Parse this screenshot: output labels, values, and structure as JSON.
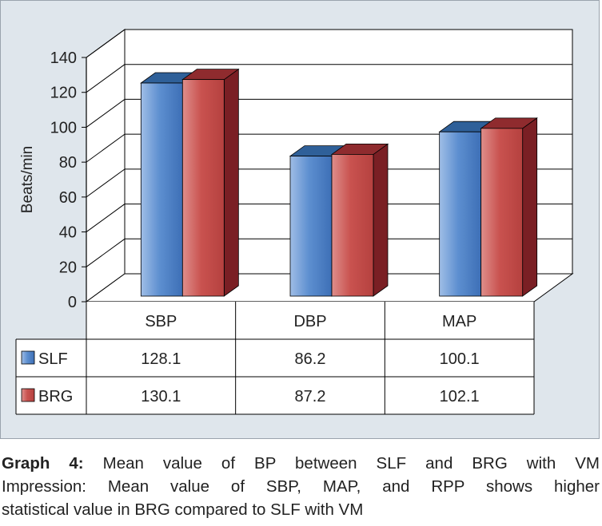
{
  "chart_data": {
    "type": "bar",
    "categories": [
      "SBP",
      "DBP",
      "MAP"
    ],
    "series": [
      {
        "name": "SLF",
        "values": [
          128.1,
          86.2,
          100.1
        ],
        "labels": [
          "128.1",
          "86.2",
          "100.1"
        ],
        "color": "#4a7fc4"
      },
      {
        "name": "BRG",
        "values": [
          130.1,
          87.2,
          102.1
        ],
        "labels": [
          "130.1",
          "87.2",
          "102.1"
        ],
        "color": "#c8504e"
      }
    ],
    "ylabel": "Beats/min",
    "ylim": [
      0,
      140
    ],
    "yticks": [
      "0",
      "20",
      "40",
      "60",
      "80",
      "100",
      "120",
      "140"
    ],
    "grid": true,
    "legend": "data-table"
  },
  "caption": {
    "lead": "Graph 4:",
    "line1": "Mean value of BP between SLF and BRG with VM",
    "line2": "Impression: Mean value of SBP, MAP, and RPP shows higher",
    "line3": "statistical value in BRG compared to SLF with VM"
  }
}
